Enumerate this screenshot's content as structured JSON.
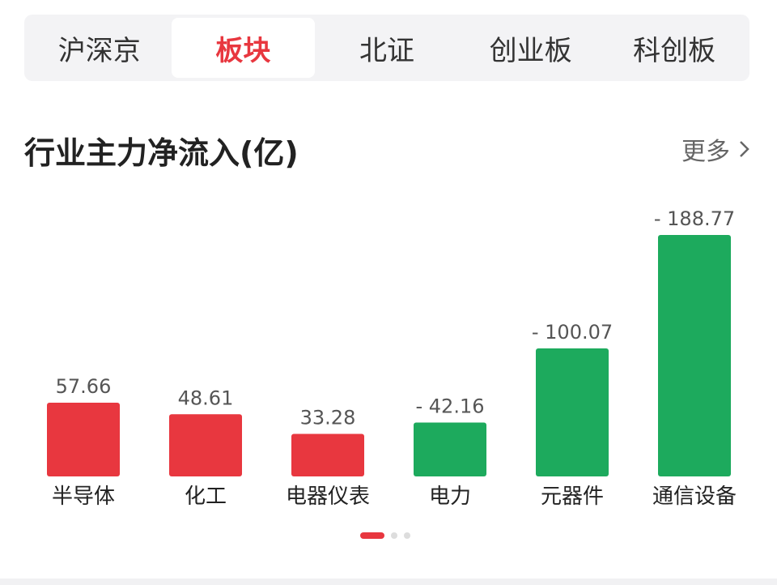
{
  "tabs": [
    {
      "label": "沪深京",
      "active": false
    },
    {
      "label": "板块",
      "active": true
    },
    {
      "label": "北证",
      "active": false
    },
    {
      "label": "创业板",
      "active": false
    },
    {
      "label": "科创板",
      "active": false
    }
  ],
  "section": {
    "title": "行业主力净流入(亿)",
    "more_label": "更多"
  },
  "colors": {
    "positive": "#e8373f",
    "negative": "#1daa5d",
    "accent": "#e8373f"
  },
  "chart_data": {
    "type": "bar",
    "title": "行业主力净流入(亿)",
    "categories": [
      "半导体",
      "化工",
      "电器仪表",
      "电力",
      "元器件",
      "通信设备"
    ],
    "values": [
      57.66,
      48.61,
      33.28,
      -42.16,
      -100.07,
      -188.77
    ],
    "value_labels": [
      "57.66",
      "48.61",
      "33.28",
      "- 42.16",
      "- 100.07",
      "- 188.77"
    ],
    "xlabel": "",
    "ylabel": "",
    "grid": false,
    "bar_height_by": "absolute value"
  },
  "pagination": {
    "pages": 3,
    "current": 1
  }
}
